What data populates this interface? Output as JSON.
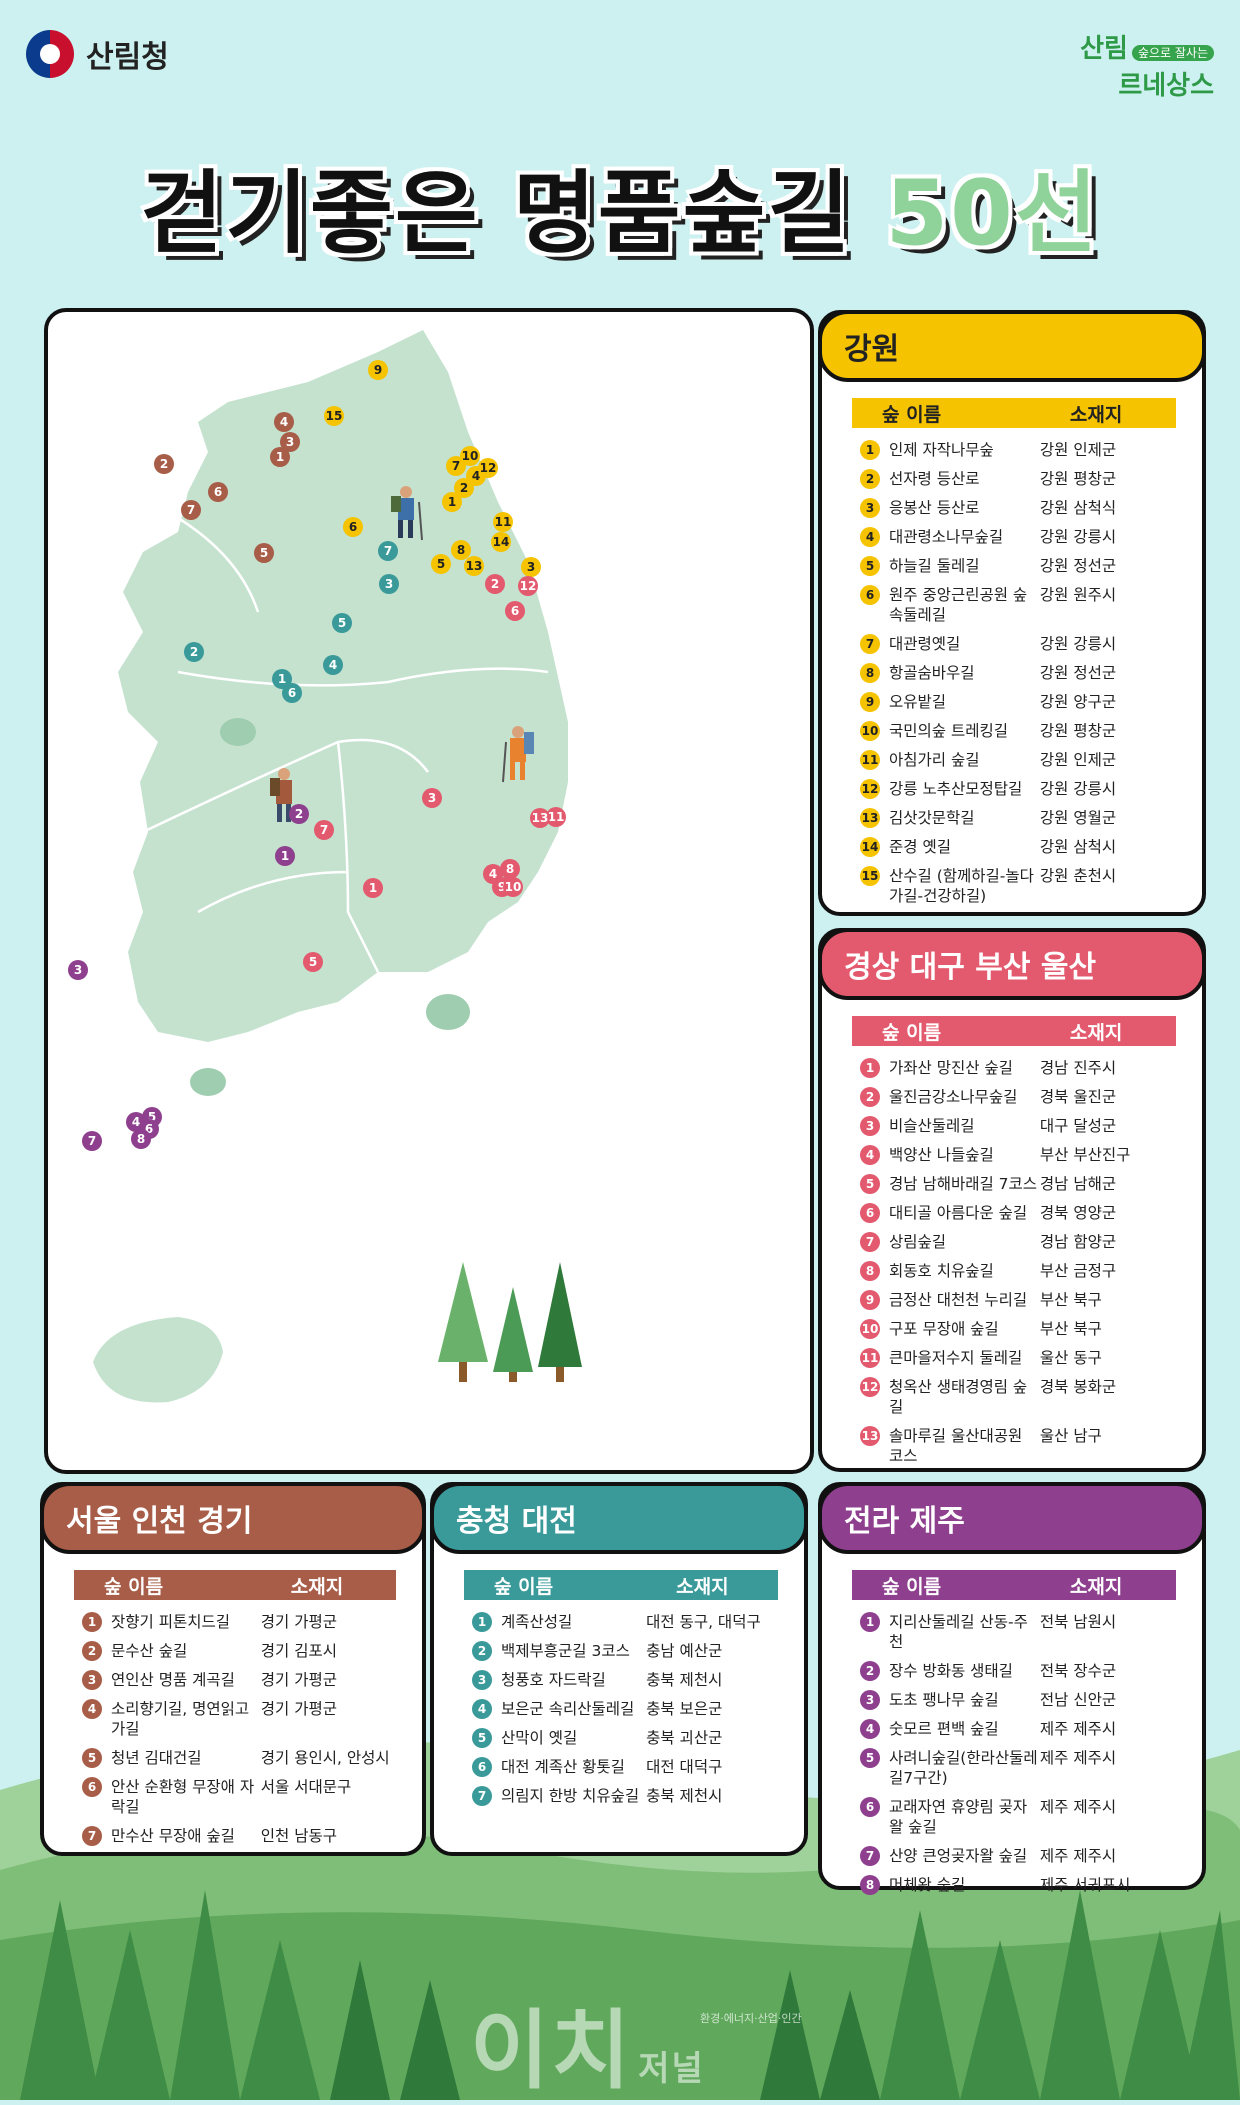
{
  "header": {
    "org_name": "산림청",
    "emblem_icon": "taegeuk-emblem-icon",
    "campaign_main": "산림",
    "campaign_badge": "숲으로 잘사는",
    "campaign_sub": "르네상스"
  },
  "title": {
    "main": "걷기좋은 명품숲길",
    "accent": "50선"
  },
  "table_headers": {
    "name": "숲 이름",
    "location": "소재지"
  },
  "colors": {
    "gangwon": "#f5c300",
    "gyeongsang": "#e35a6e",
    "seoul": "#a75d47",
    "chungcheong": "#3a9a9a",
    "jeolla": "#8e3f8e",
    "map_land": "#c5e2cf",
    "background": "#cdf1f1"
  },
  "regions": {
    "gangwon": {
      "name": "강원",
      "items": [
        {
          "n": "1",
          "name": "인제 자작나무숲",
          "loc": "강원 인제군"
        },
        {
          "n": "2",
          "name": "선자령 등산로",
          "loc": "강원 평창군"
        },
        {
          "n": "3",
          "name": "응봉산 등산로",
          "loc": "강원 삼척식"
        },
        {
          "n": "4",
          "name": "대관령소나무숲길",
          "loc": "강원 강릉시"
        },
        {
          "n": "5",
          "name": "하늘길 둘레길",
          "loc": "강원 정선군"
        },
        {
          "n": "6",
          "name": "원주 중앙근린공원 숲속둘레길",
          "loc": "강원 원주시"
        },
        {
          "n": "7",
          "name": "대관령옛길",
          "loc": "강원 강릉시"
        },
        {
          "n": "8",
          "name": "항골숨바우길",
          "loc": "강원 정선군"
        },
        {
          "n": "9",
          "name": "오유밭길",
          "loc": "강원 양구군"
        },
        {
          "n": "10",
          "name": "국민의숲 트레킹길",
          "loc": "강원 평창군"
        },
        {
          "n": "11",
          "name": "아침가리 숲길",
          "loc": "강원 인제군"
        },
        {
          "n": "12",
          "name": "강릉 노추산모정탑길",
          "loc": "강원 강릉시"
        },
        {
          "n": "13",
          "name": "김삿갓문학길",
          "loc": "강원 영월군"
        },
        {
          "n": "14",
          "name": "준경 옛길",
          "loc": "강원 삼척시"
        },
        {
          "n": "15",
          "name": "산수길 (함께하길-놀다가길-건강하길)",
          "loc": "강원 춘천시"
        }
      ]
    },
    "gyeongsang": {
      "name": "경상 대구 부산 울산",
      "items": [
        {
          "n": "1",
          "name": "가좌산 망진산 숲길",
          "loc": "경남 진주시"
        },
        {
          "n": "2",
          "name": "울진금강소나무숲길",
          "loc": "경북 울진군"
        },
        {
          "n": "3",
          "name": "비슬산둘레길",
          "loc": "대구 달성군"
        },
        {
          "n": "4",
          "name": "백양산 나들숲길",
          "loc": "부산 부산진구"
        },
        {
          "n": "5",
          "name": "경남 남해바래길 7코스",
          "loc": "경남 남해군"
        },
        {
          "n": "6",
          "name": "대티골 아름다운 숲길",
          "loc": "경북 영양군"
        },
        {
          "n": "7",
          "name": "상림숲길",
          "loc": "경남 함양군"
        },
        {
          "n": "8",
          "name": "회동호 치유숲길",
          "loc": "부산 금정구"
        },
        {
          "n": "9",
          "name": "금정산 대천천 누리길",
          "loc": "부산 북구"
        },
        {
          "n": "10",
          "name": "구포 무장애 숲길",
          "loc": "부산 북구"
        },
        {
          "n": "11",
          "name": "큰마을저수지 둘레길",
          "loc": "울산 동구"
        },
        {
          "n": "12",
          "name": "청옥산 생태경영림 숲길",
          "loc": "경북 봉화군"
        },
        {
          "n": "13",
          "name": "솔마루길 울산대공원 코스",
          "loc": "울산 남구"
        }
      ]
    },
    "seoul": {
      "name": "서울 인천 경기",
      "items": [
        {
          "n": "1",
          "name": "잣향기 피톤치드길",
          "loc": "경기 가평군"
        },
        {
          "n": "2",
          "name": "문수산 숲길",
          "loc": "경기 김포시"
        },
        {
          "n": "3",
          "name": "연인산 명품 계곡길",
          "loc": "경기 가평군"
        },
        {
          "n": "4",
          "name": "소리향기길, 명연읽고가길",
          "loc": "경기 가평군"
        },
        {
          "n": "5",
          "name": "청년 김대건길",
          "loc": "경기 용인시, 안성시"
        },
        {
          "n": "6",
          "name": "안산 순환형 무장애 자락길",
          "loc": "서울 서대문구"
        },
        {
          "n": "7",
          "name": "만수산 무장애 숲길",
          "loc": "인천 남동구"
        }
      ]
    },
    "chungcheong": {
      "name": "충청 대전",
      "items": [
        {
          "n": "1",
          "name": "계족산성길",
          "loc": "대전 동구, 대덕구"
        },
        {
          "n": "2",
          "name": "백제부흥군길 3코스",
          "loc": "충남 예산군"
        },
        {
          "n": "3",
          "name": "청풍호 자드락길",
          "loc": "충북 제천시"
        },
        {
          "n": "4",
          "name": "보은군 속리산둘레길",
          "loc": "충북 보은군"
        },
        {
          "n": "5",
          "name": "산막이 옛길",
          "loc": "충북 괴산군"
        },
        {
          "n": "6",
          "name": "대전 계족산 황톳길",
          "loc": "대전 대덕구"
        },
        {
          "n": "7",
          "name": "의림지 한방 치유숲길",
          "loc": "충북 제천시"
        }
      ]
    },
    "jeolla": {
      "name": "전라 제주",
      "items": [
        {
          "n": "1",
          "name": "지리산둘레길 산동-주천",
          "loc": "전북 남원시"
        },
        {
          "n": "2",
          "name": "장수 방화동 생태길",
          "loc": "전북 장수군"
        },
        {
          "n": "3",
          "name": "도초 팽나무 숲길",
          "loc": "전남 신안군"
        },
        {
          "n": "4",
          "name": "숫모르 편백 숲길",
          "loc": "제주 제주시"
        },
        {
          "n": "5",
          "name": "사려니숲길(한라산둘레길7구간)",
          "loc": "제주 제주시"
        },
        {
          "n": "6",
          "name": "교래자연 휴양림 곶자왈 숲길",
          "loc": "제주 제주시"
        },
        {
          "n": "7",
          "name": "산양 큰엉곶자왈 숲길",
          "loc": "제주 제주시"
        },
        {
          "n": "8",
          "name": "머체왓 숲길",
          "loc": "제주 서귀포시"
        }
      ]
    }
  },
  "map_pins": {
    "gangwon": [
      "1",
      "2",
      "3",
      "4",
      "5",
      "6",
      "7",
      "8",
      "9",
      "10",
      "11",
      "12",
      "13",
      "14",
      "15"
    ],
    "gyeongsang": [
      "1",
      "2",
      "3",
      "4",
      "5",
      "6",
      "7",
      "8",
      "9",
      "10",
      "11",
      "12",
      "13"
    ],
    "seoul": [
      "1",
      "2",
      "3",
      "4",
      "5",
      "6",
      "7"
    ],
    "chungcheong": [
      "1",
      "2",
      "3",
      "4",
      "5",
      "6",
      "7"
    ],
    "jeolla": [
      "1",
      "2",
      "3",
      "4",
      "5",
      "6",
      "7",
      "8"
    ]
  },
  "watermark": {
    "main": "이치",
    "small": "저널",
    "sub": "환경·에너지·산업·인간"
  }
}
